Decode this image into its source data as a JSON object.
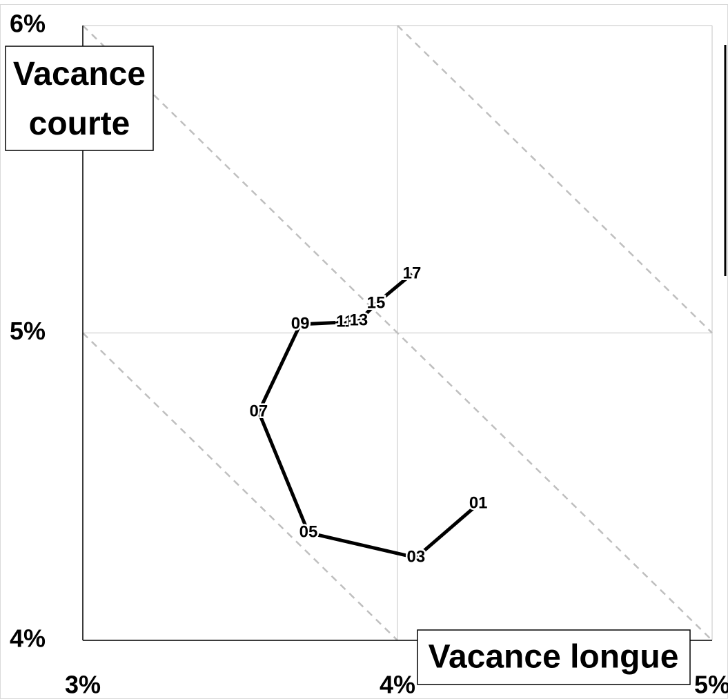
{
  "chart_data": {
    "type": "line",
    "x_label": "Vacance longue",
    "y_label": [
      "Vacance",
      "courte"
    ],
    "x": [
      4.257,
      4.059,
      3.717,
      3.559,
      3.691,
      3.833,
      3.877,
      3.932,
      4.046
    ],
    "values": [
      4.444,
      4.269,
      4.35,
      4.743,
      5.028,
      5.035,
      5.039,
      5.095,
      5.192
    ],
    "point_labels": [
      "01",
      "03",
      "05",
      "07",
      "09",
      "11",
      "13",
      "15",
      "17"
    ],
    "color": "#000000",
    "xlim": [
      3,
      5
    ],
    "ylim": [
      4,
      6
    ],
    "xticks": [
      {
        "value": 3,
        "label": "3%"
      },
      {
        "value": 4,
        "label": "4%"
      },
      {
        "value": 5,
        "label": "5%"
      }
    ],
    "yticks": [
      {
        "value": 4,
        "label": "4%"
      },
      {
        "value": 5,
        "label": "5%"
      },
      {
        "value": 6,
        "label": "6%"
      }
    ],
    "grid": true
  }
}
